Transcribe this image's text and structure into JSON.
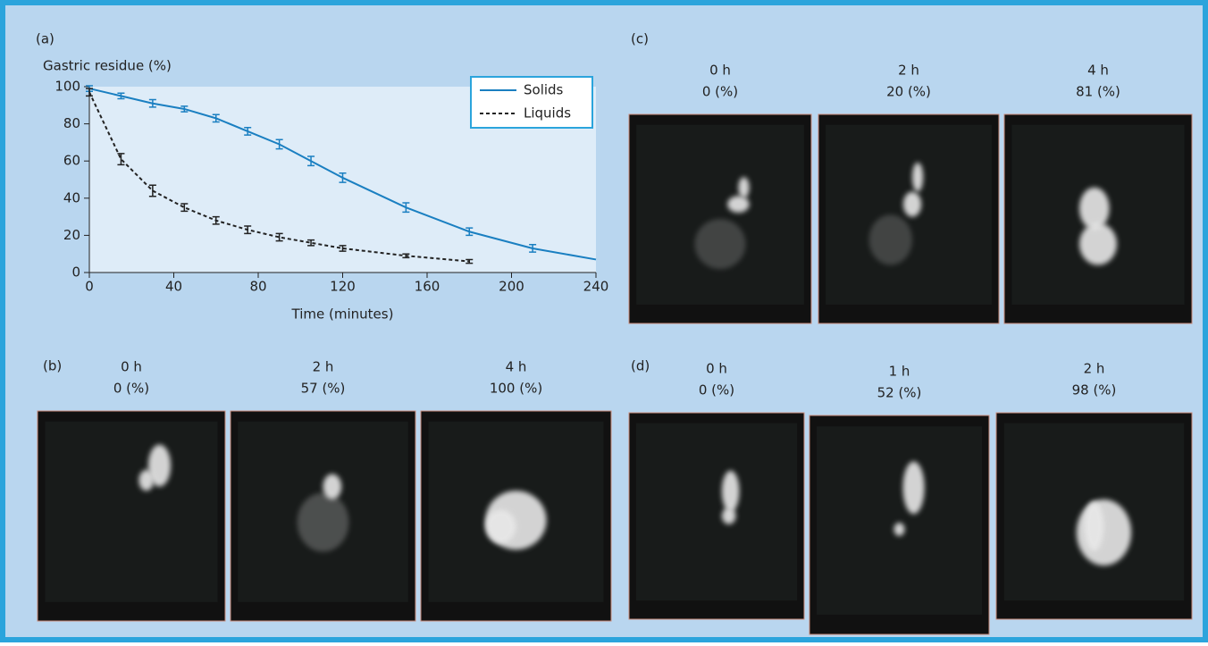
{
  "chart_data": {
    "type": "line",
    "panel_label": "(a)",
    "y_label": "Gastric residue (%)",
    "x_label": "Time (minutes)",
    "xlim": [
      0,
      240
    ],
    "ylim": [
      0,
      100
    ],
    "xticks": [
      0,
      40,
      80,
      120,
      160,
      200,
      240
    ],
    "yticks": [
      0,
      20,
      40,
      60,
      80,
      100
    ],
    "legend": "upper right",
    "series": [
      {
        "name": "Solids",
        "color": "#1a7fc1",
        "dash": false,
        "x": [
          0,
          15,
          30,
          45,
          60,
          75,
          90,
          105,
          120,
          150,
          180,
          210,
          240
        ],
        "values": [
          99,
          95,
          91,
          88,
          83,
          76,
          69,
          60,
          51,
          35,
          22,
          13,
          7
        ],
        "errors": [
          1.5,
          1.5,
          2,
          1.5,
          2,
          2,
          2.5,
          2.5,
          2.5,
          2.5,
          2,
          2,
          null
        ]
      },
      {
        "name": "Liquids",
        "color": "#222222",
        "dash": true,
        "x": [
          0,
          15,
          30,
          45,
          60,
          75,
          90,
          105,
          120,
          150,
          180
        ],
        "values": [
          97,
          61,
          44,
          35,
          28,
          23,
          19,
          16,
          13,
          9,
          6
        ],
        "errors": [
          2,
          3,
          3,
          2,
          2,
          2,
          2,
          1.5,
          1.5,
          1,
          1
        ]
      }
    ]
  },
  "panels": [
    {
      "label": "(b)",
      "images": [
        {
          "time": "0 h",
          "residue": "0 (%)"
        },
        {
          "time": "2 h",
          "residue": "57 (%)"
        },
        {
          "time": "4 h",
          "residue": "100 (%)"
        }
      ]
    },
    {
      "label": "(c)",
      "images": [
        {
          "time": "0 h",
          "residue": "0 (%)"
        },
        {
          "time": "2 h",
          "residue": "20 (%)"
        },
        {
          "time": "4 h",
          "residue": "81 (%)"
        }
      ]
    },
    {
      "label": "(d)",
      "images": [
        {
          "time": "0 h",
          "residue": "0 (%)"
        },
        {
          "time": "1 h",
          "residue": "52 (%)"
        },
        {
          "time": "2 h",
          "residue": "98 (%)"
        }
      ]
    }
  ]
}
